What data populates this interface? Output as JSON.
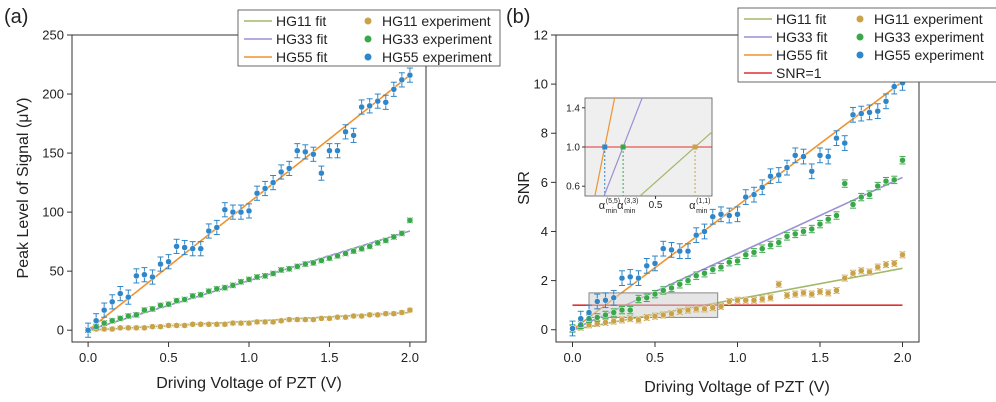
{
  "colors": {
    "hg11": "#a2b86c",
    "hg11_marker": "#c9a24a",
    "hg33": "#9b8fd6",
    "hg33_marker": "#3aa84a",
    "hg55": "#f0922e",
    "hg55_marker": "#2f86c8",
    "snr1": "#e03030",
    "inset_bg": "#efefef"
  },
  "chart_data": [
    {
      "type": "scatter",
      "panel_label": "(a)",
      "title": "",
      "xlabel": "Driving Voltage of PZT (V)",
      "ylabel": "Peak Level of Signal (μV)",
      "xlim": [
        -0.1,
        2.1
      ],
      "ylim": [
        -10,
        250
      ],
      "xticks": [
        0.0,
        0.5,
        1.0,
        1.5,
        2.0
      ],
      "xtick_labels": [
        "0.0",
        "0.5",
        "1.0",
        "1.5",
        "2.0"
      ],
      "yticks": [
        0,
        50,
        100,
        150,
        200,
        250
      ],
      "ytick_labels": [
        "0",
        "50",
        "100",
        "150",
        "200",
        "250"
      ],
      "legend": {
        "placement": "top-right",
        "entries": [
          "HG11 fit",
          "HG33 fit",
          "HG55 fit",
          "HG11 experiment",
          "HG33 experiment",
          "HG55 experiment"
        ]
      },
      "x": [
        0.0,
        0.05,
        0.1,
        0.15,
        0.2,
        0.25,
        0.3,
        0.35,
        0.4,
        0.45,
        0.5,
        0.55,
        0.6,
        0.65,
        0.7,
        0.75,
        0.8,
        0.85,
        0.9,
        0.95,
        1.0,
        1.05,
        1.1,
        1.15,
        1.2,
        1.25,
        1.3,
        1.35,
        1.4,
        1.45,
        1.5,
        1.55,
        1.6,
        1.65,
        1.7,
        1.75,
        1.8,
        1.85,
        1.9,
        1.95,
        2.0
      ],
      "fits": [
        {
          "name": "HG11 fit",
          "x": [
            0,
            2
          ],
          "y": [
            0,
            15
          ]
        },
        {
          "name": "HG33 fit",
          "x": [
            0,
            2
          ],
          "y": [
            0,
            84
          ]
        },
        {
          "name": "HG55 fit",
          "x": [
            0,
            2
          ],
          "y": [
            0,
            216
          ]
        }
      ],
      "series": [
        {
          "name": "HG11 experiment",
          "values": [
            0,
            1,
            1,
            1,
            2,
            2,
            2,
            2,
            3,
            3,
            4,
            4,
            4,
            5,
            5,
            5,
            5,
            5,
            6,
            6,
            6,
            7,
            7,
            7,
            8,
            9,
            9,
            9,
            9,
            10,
            10,
            11,
            11,
            12,
            12,
            13,
            13,
            14,
            14,
            15,
            17
          ],
          "err": 1.5
        },
        {
          "name": "HG33 experiment",
          "values": [
            0,
            3,
            6,
            8,
            10,
            12,
            13,
            17,
            18,
            21,
            22,
            25,
            26,
            29,
            30,
            33,
            35,
            36,
            38,
            41,
            43,
            45,
            46,
            48,
            51,
            52,
            54,
            56,
            57,
            59,
            61,
            63,
            65,
            67,
            69,
            71,
            74,
            76,
            79,
            82,
            93
          ],
          "err": 2
        },
        {
          "name": "HG55 experiment",
          "values": [
            0,
            8,
            17,
            24,
            31,
            28,
            46,
            47,
            45,
            56,
            58,
            71,
            70,
            69,
            69,
            84,
            87,
            102,
            100,
            100,
            101,
            116,
            120,
            125,
            134,
            137,
            152,
            151,
            149,
            133,
            152,
            152,
            168,
            165,
            189,
            190,
            194,
            193,
            204,
            212,
            216
          ],
          "err": 6
        }
      ]
    },
    {
      "type": "scatter",
      "panel_label": "(b)",
      "title": "",
      "xlabel": "Driving Voltage of PZT (V)",
      "ylabel": "SNR",
      "xlim": [
        -0.1,
        2.1
      ],
      "ylim": [
        -0.5,
        12
      ],
      "xticks": [
        0.0,
        0.5,
        1.0,
        1.5,
        2.0
      ],
      "xtick_labels": [
        "0.0",
        "0.5",
        "1.0",
        "1.5",
        "2.0"
      ],
      "yticks": [
        0,
        2,
        4,
        6,
        8,
        10,
        12
      ],
      "ytick_labels": [
        "0",
        "2",
        "4",
        "6",
        "8",
        "10",
        "12"
      ],
      "legend": {
        "placement": "top-right",
        "entries": [
          "HG11 fit",
          "HG33 fit",
          "HG55 fit",
          "SNR=1",
          "HG11 experiment",
          "HG33 experiment",
          "HG55 experiment"
        ]
      },
      "x": [
        0.0,
        0.05,
        0.1,
        0.15,
        0.2,
        0.25,
        0.3,
        0.35,
        0.4,
        0.45,
        0.5,
        0.55,
        0.6,
        0.65,
        0.7,
        0.75,
        0.8,
        0.85,
        0.9,
        0.95,
        1.0,
        1.05,
        1.1,
        1.15,
        1.2,
        1.25,
        1.3,
        1.35,
        1.4,
        1.45,
        1.5,
        1.55,
        1.6,
        1.65,
        1.7,
        1.75,
        1.8,
        1.85,
        1.9,
        1.95,
        2.0
      ],
      "fits": [
        {
          "name": "HG11 fit",
          "x": [
            0,
            2
          ],
          "y": [
            0,
            2.5
          ]
        },
        {
          "name": "HG33 fit",
          "x": [
            0,
            2
          ],
          "y": [
            0,
            6.2
          ]
        },
        {
          "name": "HG55 fit",
          "x": [
            0,
            2
          ],
          "y": [
            0,
            10.1
          ]
        },
        {
          "name": "SNR=1",
          "x": [
            0,
            2
          ],
          "y": [
            1,
            1
          ]
        }
      ],
      "series": [
        {
          "name": "HG11 experiment",
          "values": [
            0.05,
            0.1,
            0.2,
            0.25,
            0.3,
            0.35,
            0.4,
            0.45,
            0.4,
            0.5,
            0.55,
            0.6,
            0.65,
            0.75,
            0.8,
            0.85,
            0.85,
            0.9,
            0.95,
            1.15,
            1.2,
            1.2,
            1.2,
            1.25,
            1.3,
            1.85,
            1.4,
            1.45,
            1.5,
            1.45,
            1.55,
            1.5,
            1.6,
            2.1,
            2.3,
            2.4,
            2.35,
            2.55,
            2.65,
            2.7,
            3.05
          ],
          "err": 0.12
        },
        {
          "name": "HG33 experiment",
          "values": [
            0.05,
            0.2,
            0.45,
            0.5,
            0.6,
            0.7,
            0.8,
            0.8,
            1.25,
            1.3,
            1.45,
            1.6,
            1.7,
            1.85,
            2.0,
            2.2,
            2.3,
            2.45,
            2.55,
            2.75,
            2.8,
            3.05,
            3.15,
            3.3,
            3.45,
            3.55,
            3.8,
            3.9,
            4.0,
            4.1,
            4.3,
            4.5,
            4.65,
            5.95,
            5.1,
            5.4,
            5.5,
            5.85,
            6.05,
            6.1,
            6.9
          ],
          "err": 0.15
        },
        {
          "name": "HG55 experiment",
          "values": [
            0.05,
            0.45,
            0.7,
            1.15,
            1.2,
            1.3,
            2.1,
            2.15,
            2.1,
            2.6,
            2.7,
            3.3,
            3.25,
            3.2,
            3.2,
            3.85,
            4.0,
            4.6,
            4.7,
            4.65,
            4.7,
            5.4,
            5.5,
            5.8,
            6.25,
            6.3,
            6.6,
            7.1,
            7.05,
            6.45,
            7.1,
            7.05,
            7.8,
            7.6,
            8.75,
            8.8,
            8.85,
            8.9,
            9.3,
            9.9,
            10.05
          ],
          "err": 0.3
        }
      ],
      "zoom_box": {
        "x": [
          0.1,
          0.88
        ],
        "y": [
          0.5,
          1.5
        ]
      },
      "inset": {
        "xlim": [
          0.0,
          0.9
        ],
        "ylim": [
          0.5,
          1.5
        ],
        "xticks": [
          0.5
        ],
        "xtick_labels": [
          "0.5"
        ],
        "yticks": [
          0.6,
          1.0,
          1.4
        ],
        "ytick_labels": [
          "0.6",
          "1.0",
          "1.4"
        ],
        "alpha_markers": [
          {
            "x": 0.14,
            "label": "α",
            "sub": "min",
            "sup": "(5,5)"
          },
          {
            "x": 0.27,
            "label": "α",
            "sub": "min",
            "sup": "(3,3)"
          },
          {
            "x": 0.78,
            "label": "α",
            "sub": "min",
            "sup": "(1,1)"
          }
        ]
      }
    }
  ]
}
